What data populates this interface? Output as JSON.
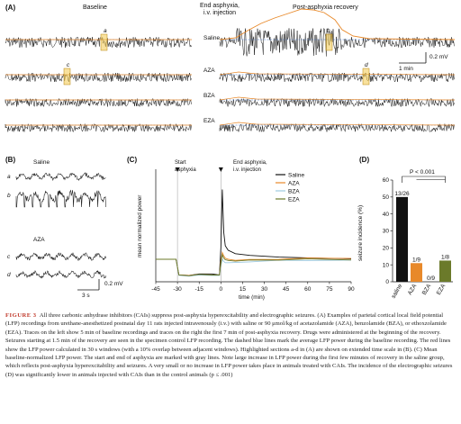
{
  "panelA": {
    "label": "(A)",
    "baseline_title": "Baseline",
    "end_title": "End asphyxia,\ni.v. injection",
    "post_title": "Post-asphyxia recovery",
    "rows": [
      "Saline",
      "AZA",
      "BZA",
      "EZA"
    ],
    "highlights": [
      "a",
      "b",
      "c",
      "d"
    ],
    "scale_time": "1 min",
    "scale_volt": "0.2 mV",
    "colors": {
      "trace": "#111111",
      "power": "#e8892a",
      "highlight": "#f2c94c",
      "dashed": "#3b6fc4"
    }
  },
  "panelB": {
    "label": "(B)",
    "row_labels": [
      "Saline",
      "AZA"
    ],
    "trace_labels": [
      "a",
      "b",
      "c",
      "d"
    ],
    "scale_time": "3 s",
    "scale_volt": "0.2 mV"
  },
  "chart_data": {
    "type": "line",
    "label": "(C)",
    "xlabel": "time (min)",
    "ylabel": "mean normalized power",
    "x_ticks": [
      -45,
      -30,
      -15,
      0,
      15,
      30,
      45,
      60,
      75,
      90
    ],
    "ylim": [
      0,
      5
    ],
    "annotations": [
      "Start\nasphyxia",
      "End asphyxia,\ni.v. injection"
    ],
    "legend": [
      "Saline",
      "AZA",
      "BZA",
      "EZA"
    ],
    "series": [
      {
        "name": "Saline",
        "color": "#111111",
        "x": [
          -45,
          -31,
          -29,
          -22,
          -15,
          -6,
          -1,
          0,
          1,
          2,
          3,
          5,
          10,
          20,
          40,
          60,
          90
        ],
        "y": [
          1.0,
          1.0,
          0.3,
          0.28,
          0.35,
          0.35,
          0.3,
          1.5,
          4.1,
          2.2,
          1.6,
          1.4,
          1.25,
          1.15,
          1.1,
          1.05,
          1.0
        ]
      },
      {
        "name": "AZA",
        "color": "#e8892a",
        "x": [
          -45,
          -31,
          -29,
          -22,
          -15,
          -6,
          -1,
          0,
          1,
          2,
          3,
          5,
          10,
          20,
          40,
          60,
          90
        ],
        "y": [
          1.0,
          1.0,
          0.3,
          0.28,
          0.32,
          0.3,
          0.3,
          0.9,
          1.3,
          1.15,
          1.05,
          1.0,
          0.98,
          0.98,
          1.0,
          1.02,
          1.0
        ]
      },
      {
        "name": "BZA",
        "color": "#9ecae1",
        "x": [
          -45,
          -31,
          -29,
          -22,
          -15,
          -6,
          -1,
          0,
          1,
          2,
          3,
          5,
          10,
          20,
          40,
          60,
          90
        ],
        "y": [
          1.0,
          1.0,
          0.28,
          0.25,
          0.3,
          0.28,
          0.28,
          0.7,
          1.0,
          0.9,
          0.85,
          0.85,
          0.88,
          0.9,
          0.92,
          0.95,
          0.95
        ]
      },
      {
        "name": "EZA",
        "color": "#6b7a2a",
        "x": [
          -45,
          -31,
          -29,
          -22,
          -15,
          -6,
          -1,
          0,
          1,
          2,
          3,
          5,
          10,
          20,
          40,
          60,
          90
        ],
        "y": [
          1.0,
          1.0,
          0.3,
          0.27,
          0.33,
          0.3,
          0.3,
          0.8,
          1.2,
          1.05,
          0.98,
          0.95,
          0.95,
          0.96,
          0.98,
          1.0,
          1.0
        ]
      }
    ]
  },
  "chart_data_D": {
    "type": "bar",
    "label": "(D)",
    "ylabel": "seizure incidence (%)",
    "categories": [
      "saline",
      "AZA",
      "BZA",
      "EZA"
    ],
    "values": [
      50,
      11,
      0,
      12.5
    ],
    "value_labels": [
      "13/26",
      "1/9",
      "0/9",
      "1/8"
    ],
    "colors": [
      "#111111",
      "#e8892a",
      "#9ecae1",
      "#6b7a2a"
    ],
    "ylim": [
      0,
      60
    ],
    "yticks": [
      0,
      10,
      20,
      30,
      40,
      50,
      60
    ],
    "significance": "P < 0.001"
  },
  "caption": {
    "label": "FIGURE 3",
    "text": "All three carbonic anhydrase inhibitors (CAIs) suppress post-asphyxia hyperexcitability and electrographic seizures. (A) Examples of parietal cortical local field potential (LFP) recordings from urethane-anesthetized postnatal day 11 rats injected intravenously (i.v.) with saline or 90 μmol/kg of acetazolamide (AZA), benzolamide (BZA), or ethoxzolamide (EZA). Traces on the left show 5 min of baseline recordings and traces on the right the first 7 min of post-asphyxia recovery. Drugs were administered at the beginning of the recovery. Seizures starting at 1.5 min of the recovery are seen in the specimen control LFP recording. The dashed blue lines mark the average LFP power during the baseline recording. The red lines show the LFP power calculated in 30 s windows (with a 10% overlap between adjacent windows). Highlighted sections a-d in (A) are shown on extended time scale in (B). (C) Mean baseline-normalized LFP power. The start and end of asphyxia are marked with gray lines. Note large increase in LFP power during the first few minutes of recovery in the saline group, which reflects post-asphyxia hyperexcitability and seizures. A very small or no increase in LFP power takes place in animals treated with CAIs. The incidence of the electrographic seizures (D) was significantly lower in animals injected with CAIs than in the control animals (p ≤ .001)"
  }
}
